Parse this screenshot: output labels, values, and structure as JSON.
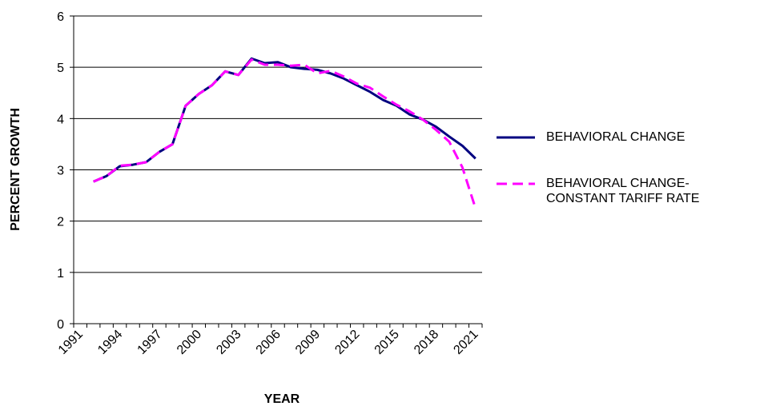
{
  "chart_data": {
    "type": "line",
    "y_label": "PERCENT GROWTH",
    "x_label": "YEAR",
    "categories": [
      "1991",
      null,
      null,
      "1994",
      null,
      null,
      "1997",
      null,
      null,
      "2000",
      null,
      null,
      "2003",
      null,
      null,
      "2006",
      null,
      null,
      "2009",
      null,
      null,
      "2012",
      null,
      null,
      "2015",
      null,
      null,
      "2018",
      null,
      null,
      "2021"
    ],
    "series": [
      {
        "name": "BEHAVIORAL CHANGE",
        "color": "#000080",
        "dashed": false,
        "values": [
          null,
          2.77,
          2.88,
          3.07,
          3.1,
          3.15,
          3.35,
          3.5,
          4.25,
          4.48,
          4.65,
          4.92,
          4.85,
          5.17,
          5.08,
          5.1,
          5.0,
          4.97,
          4.95,
          4.88,
          4.78,
          4.65,
          4.52,
          4.36,
          4.25,
          4.08,
          3.98,
          3.84,
          3.65,
          3.47,
          3.22
        ]
      },
      {
        "name": "BEHAVIORAL CHANGE- CONSTANT TARIFF RATE",
        "color": "#ff00ff",
        "dashed": true,
        "values": [
          null,
          2.77,
          2.88,
          3.08,
          3.1,
          3.15,
          3.35,
          3.5,
          4.25,
          4.48,
          4.65,
          4.92,
          4.85,
          5.15,
          5.05,
          5.05,
          5.03,
          5.05,
          4.88,
          4.93,
          4.82,
          4.68,
          4.6,
          4.43,
          4.27,
          4.14,
          3.98,
          3.78,
          3.55,
          3.05,
          2.25
        ]
      }
    ],
    "ylim": [
      0,
      6
    ],
    "yticks": [
      0,
      1,
      2,
      3,
      4,
      5,
      6
    ],
    "grid": true,
    "legend": "right"
  }
}
